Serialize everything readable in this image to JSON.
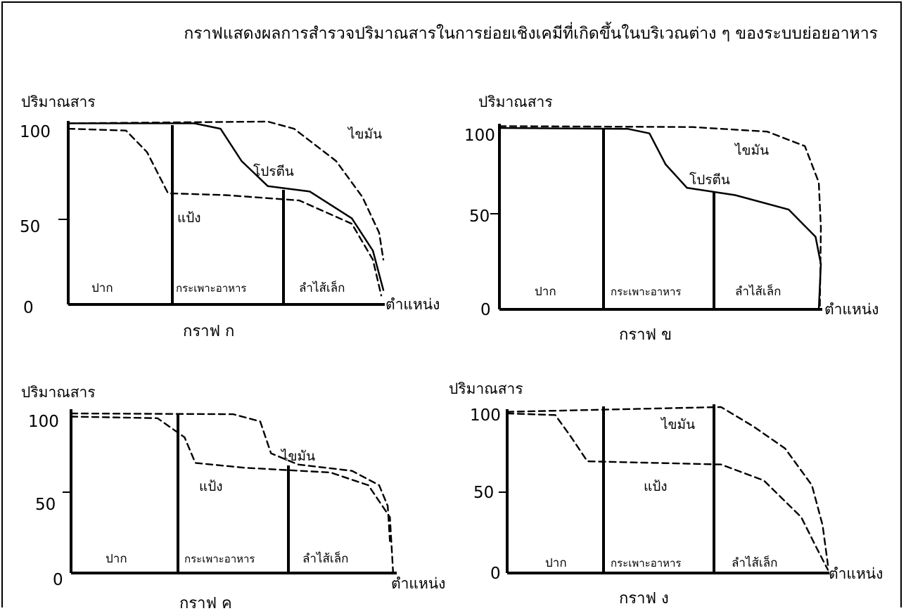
{
  "title": "กราฟแสดงผลการสำรวจปริมาณสารในการย่อยเชิงเคมีที่เกิดขึ้นในบริเวณต่าง ๆ ของระบบย่อยอาหาร",
  "colors": {
    "line": "#000000",
    "background": "#ffffff"
  },
  "chart_data": [
    {
      "type": "line",
      "caption": "กราฟ ก",
      "ylabel": "ปริมาณสาร",
      "xlabel": "ตำแหน่ง",
      "yticks": [
        "0",
        "50",
        "100"
      ],
      "ylim": [
        0,
        100
      ],
      "regions": [
        "ปาก",
        "กระเพาะอาหาร",
        "ลำไส้เล็ก"
      ],
      "series": [
        {
          "name": "แป้ง",
          "style": "dashed",
          "points": [
            [
              0,
              98
            ],
            [
              0.55,
              97
            ],
            [
              0.75,
              85
            ],
            [
              0.95,
              62
            ],
            [
              1.5,
              61
            ],
            [
              2.2,
              58
            ],
            [
              2.7,
              45
            ],
            [
              2.9,
              25
            ],
            [
              2.98,
              5
            ]
          ]
        },
        {
          "name": "โปรตีน",
          "style": "solid",
          "points": [
            [
              0,
              101
            ],
            [
              1.2,
              101
            ],
            [
              1.45,
              98
            ],
            [
              1.65,
              80
            ],
            [
              1.9,
              66
            ],
            [
              2.3,
              63
            ],
            [
              2.7,
              48
            ],
            [
              2.9,
              30
            ],
            [
              3.0,
              8
            ]
          ]
        },
        {
          "name": "ไขมัน",
          "style": "dashed",
          "points": [
            [
              0,
              101
            ],
            [
              1.9,
              102
            ],
            [
              2.15,
              98
            ],
            [
              2.55,
              80
            ],
            [
              2.8,
              60
            ],
            [
              2.96,
              40
            ],
            [
              3.0,
              25
            ]
          ]
        }
      ]
    },
    {
      "type": "line",
      "caption": "กราฟ ข",
      "ylabel": "ปริมาณสาร",
      "xlabel": "ตำแหน่ง",
      "yticks": [
        "0",
        "50",
        "100"
      ],
      "ylim": [
        0,
        100
      ],
      "regions": [
        "ปาก",
        "กระเพาะอาหาร",
        "ลำไส้เล็ก"
      ],
      "series": [
        {
          "name": "โปรตีน",
          "style": "solid",
          "points": [
            [
              0,
              100
            ],
            [
              1.2,
              99.5
            ],
            [
              1.4,
              97
            ],
            [
              1.55,
              80
            ],
            [
              1.75,
              67
            ],
            [
              2.2,
              63
            ],
            [
              2.7,
              55
            ],
            [
              2.95,
              40
            ],
            [
              3.0,
              25
            ],
            [
              2.98,
              0
            ]
          ]
        },
        {
          "name": "ไขมัน",
          "style": "dashed",
          "points": [
            [
              0,
              101
            ],
            [
              1.8,
              100.5
            ],
            [
              2.5,
              98
            ],
            [
              2.85,
              90
            ],
            [
              2.98,
              70
            ],
            [
              3.0,
              45
            ],
            [
              2.99,
              0
            ]
          ]
        }
      ]
    },
    {
      "type": "line",
      "caption": "กราฟ ค",
      "ylabel": "ปริมาณสาร",
      "xlabel": "ตำแหน่ง",
      "yticks": [
        "0",
        "50",
        "100"
      ],
      "ylim": [
        0,
        100
      ],
      "regions": [
        "ปาก",
        "กระเพาะอาหาร",
        "ลำไส้เล็ก"
      ],
      "series": [
        {
          "name": "แป้ง",
          "style": "dashed",
          "points": [
            [
              0,
              98
            ],
            [
              0.8,
              97
            ],
            [
              1.05,
              85
            ],
            [
              1.15,
              69
            ],
            [
              1.6,
              66
            ],
            [
              2.4,
              63
            ],
            [
              2.75,
              55
            ],
            [
              2.95,
              35
            ],
            [
              2.98,
              0
            ]
          ]
        },
        {
          "name": "ไขมัน",
          "style": "dashed",
          "points": [
            [
              0,
              100
            ],
            [
              1.5,
              99.5
            ],
            [
              1.75,
              95
            ],
            [
              1.85,
              75
            ],
            [
              2.1,
              68
            ],
            [
              2.6,
              64
            ],
            [
              2.85,
              55
            ],
            [
              2.93,
              42
            ],
            [
              2.95,
              20
            ]
          ]
        }
      ]
    },
    {
      "type": "line",
      "caption": "กราฟ ง",
      "ylabel": "ปริมาณสาร",
      "xlabel": "ตำแหน่ง",
      "yticks": [
        "0",
        "50",
        "100"
      ],
      "ylim": [
        0,
        100
      ],
      "regions": [
        "ปาก",
        "กระเพาะอาหาร",
        "ลำไส้เล็ก"
      ],
      "series": [
        {
          "name": "แป้ง",
          "style": "dashed",
          "points": [
            [
              0,
              100
            ],
            [
              0.45,
              99
            ],
            [
              0.6,
              85
            ],
            [
              0.75,
              70
            ],
            [
              2.0,
              68
            ],
            [
              2.4,
              58
            ],
            [
              2.75,
              35
            ],
            [
              2.9,
              15
            ],
            [
              3.0,
              2
            ]
          ]
        },
        {
          "name": "ไขมัน",
          "style": "dashed",
          "points": [
            [
              0,
              101
            ],
            [
              2.0,
              104
            ],
            [
              2.3,
              92
            ],
            [
              2.6,
              78
            ],
            [
              2.85,
              55
            ],
            [
              2.95,
              30
            ],
            [
              3.0,
              5
            ]
          ]
        }
      ]
    }
  ]
}
